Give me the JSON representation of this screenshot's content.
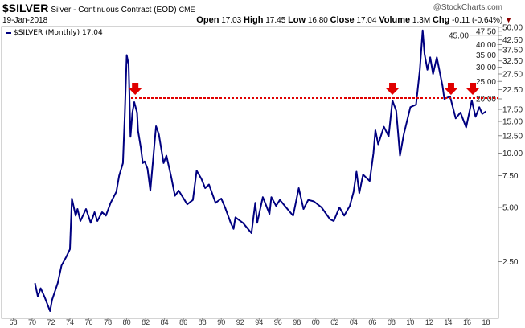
{
  "header": {
    "symbol": "$SILVER",
    "name": "Silver - Continuous Contract (EOD)",
    "exchange": "CME",
    "brand": "@StockCharts.com",
    "date": "19-Jan-2018",
    "open_label": "Open",
    "open": "17.03",
    "high_label": "High",
    "high": "17.45",
    "low_label": "Low",
    "low": "16.80",
    "close_label": "Close",
    "close": "17.04",
    "volume_label": "Volume",
    "volume": "1.3M",
    "chg_label": "Chg",
    "chg": "-0.11 (-0.64%)",
    "chg_icon": "down-triangle-icon"
  },
  "legend": {
    "label": "$SILVER (Monthly) 17.04"
  },
  "colors": {
    "series": "#000080",
    "resistance": "#e00000",
    "arrows": "#e00000"
  },
  "chart_data": {
    "type": "line",
    "title": "$SILVER Silver - Continuous Contract (EOD) CME",
    "y_scale": "log",
    "ylim": [
      1.3,
      50
    ],
    "xlim": [
      1968,
      2018.8
    ],
    "grid": false,
    "legend_position": "top-left",
    "y_axis_side": "right",
    "y_ticks": [
      "50.00",
      "47.50",
      "45.00",
      "42.50",
      "40.00",
      "37.50",
      "35.00",
      "32.50",
      "30.00",
      "27.50",
      "25.00",
      "22.50",
      "20.00",
      "17.50",
      "15.00",
      "12.50",
      "10.00",
      "7.50",
      "5.00",
      "2.50"
    ],
    "x_ticks": [
      "68",
      "70",
      "72",
      "74",
      "76",
      "78",
      "80",
      "82",
      "84",
      "86",
      "88",
      "90",
      "92",
      "94",
      "96",
      "98",
      "00",
      "02",
      "04",
      "06",
      "08",
      "10",
      "12",
      "14",
      "16",
      "18"
    ],
    "series": [
      {
        "name": "$SILVER (Monthly)",
        "x": [
          1970.3,
          1970.6,
          1970.9,
          1971.3,
          1971.9,
          1972.1,
          1972.7,
          1973.1,
          1973.6,
          1974.0,
          1974.2,
          1974.6,
          1974.8,
          1975.1,
          1975.7,
          1976.2,
          1976.6,
          1976.9,
          1977.4,
          1977.8,
          1978.3,
          1978.9,
          1979.2,
          1979.6,
          1979.8,
          1980.0,
          1980.2,
          1980.4,
          1980.6,
          1980.8,
          1981.1,
          1981.2,
          1981.5,
          1981.7,
          1981.9,
          1982.2,
          1982.5,
          1983.1,
          1983.4,
          1983.9,
          1984.2,
          1984.7,
          1985.1,
          1985.5,
          1986.4,
          1987.0,
          1987.4,
          1987.9,
          1988.3,
          1988.7,
          1989.4,
          1990.0,
          1990.4,
          1991.0,
          1991.3,
          1991.5,
          1992.3,
          1993.2,
          1993.6,
          1993.8,
          1994.4,
          1995.1,
          1995.3,
          1995.8,
          1996.2,
          1997.0,
          1997.6,
          1998.2,
          1998.7,
          1999.2,
          1999.8,
          2000.6,
          2001.5,
          2001.9,
          2002.5,
          2003.0,
          2003.6,
          2004.0,
          2004.3,
          2004.6,
          2005.0,
          2005.7,
          2006.1,
          2006.3,
          2006.6,
          2007.2,
          2007.7,
          2008.1,
          2008.5,
          2008.9,
          2009.3,
          2010.0,
          2010.6,
          2011.0,
          2011.3,
          2011.5,
          2011.8,
          2012.1,
          2012.4,
          2012.8,
          2013.4,
          2013.6,
          2014.2,
          2014.8,
          2015.3,
          2015.9,
          2016.5,
          2016.9,
          2017.3,
          2017.6,
          2018.0
        ],
        "values": [
          1.9,
          1.6,
          1.78,
          1.6,
          1.33,
          1.53,
          1.9,
          2.38,
          2.65,
          2.93,
          5.6,
          4.5,
          4.9,
          4.2,
          4.9,
          4.1,
          4.7,
          4.2,
          4.7,
          4.5,
          5.3,
          6.1,
          7.5,
          8.8,
          16.2,
          35,
          31,
          12.3,
          16.8,
          19.2,
          16.8,
          13.3,
          10.7,
          8.8,
          9.0,
          8.2,
          6.2,
          14.1,
          12.7,
          8.8,
          9.7,
          7.4,
          5.8,
          6.2,
          5.2,
          5.5,
          8.0,
          7.2,
          6.4,
          6.7,
          5.3,
          5.6,
          5.0,
          4.1,
          3.8,
          4.4,
          4.1,
          3.6,
          5.3,
          4.1,
          5.7,
          4.6,
          5.7,
          5.1,
          5.5,
          4.9,
          4.5,
          6.4,
          4.9,
          5.5,
          5.4,
          5.0,
          4.3,
          4.2,
          5.0,
          4.5,
          5.1,
          6.1,
          7.9,
          6.0,
          7.6,
          7.0,
          10,
          13.4,
          11.2,
          14.0,
          12.4,
          19.6,
          17.2,
          9.7,
          12.7,
          18,
          18.6,
          29,
          48,
          35.6,
          29,
          34,
          27.5,
          34,
          23.6,
          20,
          20.6,
          15.6,
          16.8,
          13.9,
          19.6,
          15.9,
          18,
          16.5,
          17.04
        ]
      }
    ],
    "annotations": {
      "resistance_level": 20.2,
      "resistance_start": 1980.8,
      "arrows_at": [
        1980.9,
        2008.1,
        2014.3,
        2016.6
      ]
    }
  }
}
